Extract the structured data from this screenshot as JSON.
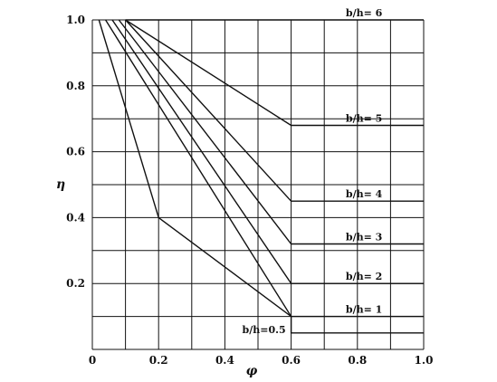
{
  "chart_data": {
    "type": "line",
    "title": "",
    "xlabel": "φ",
    "ylabel": "η",
    "xlim": [
      0,
      1.0
    ],
    "ylim": [
      0,
      1.0
    ],
    "x_ticks": [
      "0",
      "0.2",
      "0.4",
      "0.6",
      "0.8",
      "1.0"
    ],
    "y_ticks": [
      "0.2",
      "0.4",
      "0.6",
      "0.8",
      "1.0"
    ],
    "grid": true,
    "legend": "none",
    "series": [
      {
        "name": "b/h=0.5",
        "points": [
          [
            0.02,
            1.0
          ],
          [
            0.2,
            0.4
          ],
          [
            0.6,
            0.1
          ],
          [
            0.6,
            0.05
          ],
          [
            1.0,
            0.05
          ]
        ]
      },
      {
        "name": "b/h= 1",
        "points": [
          [
            0.04,
            1.0
          ],
          [
            0.6,
            0.1
          ],
          [
            1.0,
            0.1
          ]
        ]
      },
      {
        "name": "b/h= 2",
        "points": [
          [
            0.06,
            1.0
          ],
          [
            0.6,
            0.2
          ],
          [
            1.0,
            0.2
          ]
        ]
      },
      {
        "name": "b/h= 3",
        "points": [
          [
            0.08,
            1.0
          ],
          [
            0.6,
            0.32
          ],
          [
            1.0,
            0.32
          ]
        ]
      },
      {
        "name": "b/h= 4",
        "points": [
          [
            0.1,
            1.0
          ],
          [
            0.6,
            0.45
          ],
          [
            1.0,
            0.45
          ]
        ]
      },
      {
        "name": "b/h= 5",
        "points": [
          [
            0.1,
            1.0
          ],
          [
            0.6,
            0.68
          ],
          [
            1.0,
            0.68
          ]
        ]
      },
      {
        "name": "b/h= 6",
        "points": [
          [
            0.1,
            1.0
          ],
          [
            1.0,
            1.0
          ]
        ]
      }
    ]
  }
}
